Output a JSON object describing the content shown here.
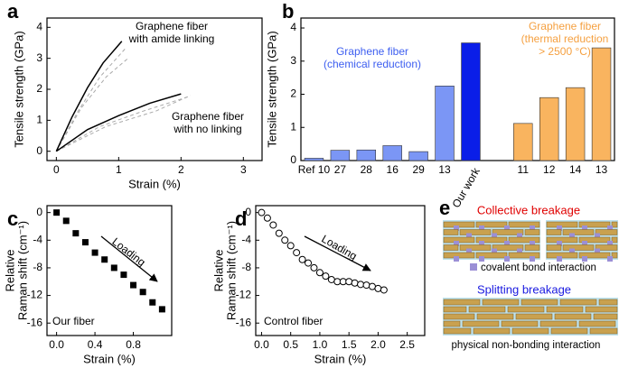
{
  "chart_data": [
    {
      "type": "line",
      "label": "a",
      "xlabel": "Strain (%)",
      "ylabel": [
        "Tensile strength (GPa)"
      ],
      "xlim": [
        -0.15,
        3.3
      ],
      "ylim": [
        -0.3,
        4.3
      ],
      "xticks": [
        0,
        1,
        2,
        3
      ],
      "yticks": [
        0,
        1,
        2,
        3,
        4
      ],
      "series": [
        {
          "x": [
            0,
            0.4,
            0.8,
            1.15
          ],
          "values": [
            0,
            1.4,
            2.4,
            3.0
          ],
          "color": "#aaaaaa",
          "dash": true
        },
        {
          "x": [
            0,
            0.35,
            0.7,
            1.1
          ],
          "values": [
            0,
            1.3,
            2.4,
            3.3
          ],
          "color": "#aaaaaa",
          "dash": true
        },
        {
          "x": [
            0,
            0.7,
            1.4,
            2.1
          ],
          "values": [
            0,
            0.8,
            1.3,
            1.75
          ],
          "color": "#aaaaaa",
          "dash": true
        },
        {
          "x": [
            0,
            0.8,
            1.6,
            2.15
          ],
          "values": [
            0,
            0.8,
            1.3,
            1.8
          ],
          "color": "#aaaaaa",
          "dash": true
        },
        {
          "x": [
            0,
            0.25,
            0.5,
            0.75,
            1.05
          ],
          "values": [
            0,
            1.1,
            2.05,
            2.85,
            3.55
          ],
          "color": "#000000",
          "dash": false
        },
        {
          "x": [
            0,
            0.5,
            1.0,
            1.5,
            2.0
          ],
          "values": [
            0,
            0.7,
            1.15,
            1.55,
            1.85
          ],
          "color": "#000000",
          "dash": false
        }
      ],
      "annotations": [
        {
          "lines": [
            "Graphene fiber",
            "with amide linking"
          ],
          "color": "#000000"
        },
        {
          "lines": [
            "Graphene fiber",
            "with no linking"
          ],
          "color": "#000000"
        }
      ]
    },
    {
      "type": "bar",
      "label": "b",
      "ylabel": [
        "Tensile strength (GPa)"
      ],
      "categories": [
        "Ref 10",
        "27",
        "28",
        "16",
        "29",
        "13",
        "Our work",
        null,
        "11",
        "12",
        "14",
        "13"
      ],
      "values": [
        0.07,
        0.31,
        0.32,
        0.45,
        0.27,
        2.25,
        3.55,
        null,
        1.12,
        1.9,
        2.2,
        3.4
      ],
      "colors": [
        "#7b96f5",
        "#7b96f5",
        "#7b96f5",
        "#7b96f5",
        "#7b96f5",
        "#7b96f5",
        "#0a1ee8",
        null,
        "#f9b45f",
        "#f9b45f",
        "#f9b45f",
        "#f9b45f"
      ],
      "ylim": [
        0,
        4.3
      ],
      "yticks": [
        0,
        1,
        2,
        3,
        4
      ],
      "annotations": [
        {
          "lines": [
            "Graphene fiber",
            "(chemical reduction)"
          ],
          "color": "#3d5ef0"
        },
        {
          "lines": [
            "Graphene fiber",
            "(thermal reduction",
            "> 2500 °C)"
          ],
          "color": "#f5a040"
        }
      ]
    },
    {
      "type": "scatter",
      "label": "c",
      "xlabel": "Strain (%)",
      "ylabel": [
        "Relative",
        "Raman shift (cm⁻¹)"
      ],
      "xlim": [
        -0.1,
        1.2
      ],
      "ylim": [
        -17.8,
        1
      ],
      "xticks": [
        {
          "value": 0,
          "label": "0.0"
        },
        0.4,
        0.8
      ],
      "yticks": [
        0,
        -4,
        -8,
        -12,
        -16
      ],
      "series": [
        {
          "x": [
            0,
            0.1,
            0.2,
            0.3,
            0.4,
            0.5,
            0.6,
            0.7,
            0.8,
            0.9,
            1.0,
            1.1
          ],
          "values": [
            0,
            -1.2,
            -3,
            -4.3,
            -5.8,
            -6.8,
            -8,
            -9,
            -10.5,
            -11.5,
            -13,
            -14
          ],
          "color": "#000000",
          "marker": "square"
        }
      ],
      "annotations": [
        {
          "lines": [
            "Loading"
          ],
          "color": "#000000"
        },
        {
          "lines": [
            "Our fiber"
          ],
          "color": "#000000"
        }
      ]
    },
    {
      "type": "scatter",
      "label": "d",
      "xlabel": "Strain (%)",
      "ylabel": [
        "Relative",
        "Raman shift (cm⁻¹)"
      ],
      "xlim": [
        -0.1,
        2.8
      ],
      "ylim": [
        -17.8,
        1
      ],
      "xticks": [
        {
          "value": 0,
          "label": "0.0"
        },
        0.5,
        {
          "value": 1,
          "label": "1.0"
        },
        1.5,
        {
          "value": 2,
          "label": "2.0"
        },
        2.5
      ],
      "yticks": [
        0,
        -4,
        -8,
        -12,
        -16
      ],
      "series": [
        {
          "x": [
            0,
            0.1,
            0.2,
            0.3,
            0.4,
            0.5,
            0.6,
            0.7,
            0.8,
            0.9,
            1.0,
            1.1,
            1.2,
            1.3,
            1.4,
            1.5,
            1.6,
            1.7,
            1.8,
            1.9,
            2.0,
            2.1
          ],
          "values": [
            0,
            -0.8,
            -1.8,
            -3,
            -4,
            -4.8,
            -5.8,
            -6.8,
            -7.3,
            -8,
            -8.7,
            -9.2,
            -9.7,
            -10,
            -10,
            -10,
            -10.2,
            -10.4,
            -10.5,
            -10.7,
            -11,
            -11.2
          ],
          "color": "#000000",
          "marker": "circle"
        }
      ],
      "annotations": [
        {
          "lines": [
            "Loading"
          ],
          "color": "#000000"
        },
        {
          "lines": [
            "Control fiber"
          ],
          "color": "#000000"
        }
      ]
    }
  ],
  "diagram": {
    "label": "e",
    "collective": "Collective breakage",
    "covalent": "covalent bond interaction",
    "splitting": "Splitting breakage",
    "physical": "physical non-bonding interaction"
  }
}
